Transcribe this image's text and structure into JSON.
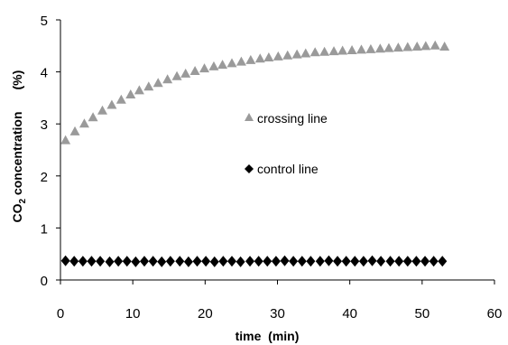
{
  "chart_data": {
    "type": "scatter",
    "xlabel": "time  (min)",
    "ylabel": "CO2 concentration    (%)",
    "ylabel_parts": {
      "main": "CO",
      "sub": "2",
      "rest": " concentration",
      "unit": "(%)"
    },
    "xlim": [
      0,
      60
    ],
    "ylim": [
      0,
      5
    ],
    "x_ticks": [
      "0",
      "10",
      "20",
      "30",
      "40",
      "50",
      "60"
    ],
    "y_ticks": [
      "0",
      "1",
      "2",
      "3",
      "4",
      "5"
    ],
    "grid": false,
    "legend_position": "center-right",
    "series": [
      {
        "name": "crossing line",
        "marker": "triangle",
        "color": "#9a9a9a",
        "x": [
          0.7,
          2.0,
          3.3,
          4.5,
          5.8,
          7.1,
          8.4,
          9.7,
          10.9,
          12.2,
          13.5,
          14.8,
          16.1,
          17.3,
          18.6,
          19.9,
          21.2,
          22.4,
          23.7,
          25.0,
          26.3,
          27.6,
          28.8,
          30.1,
          31.4,
          32.7,
          33.9,
          35.2,
          36.5,
          37.8,
          39.0,
          40.3,
          41.6,
          42.9,
          44.2,
          45.4,
          46.7,
          48.0,
          49.3,
          50.5,
          51.8,
          53.1
        ],
        "y": [
          2.68,
          2.85,
          3.0,
          3.12,
          3.25,
          3.36,
          3.46,
          3.56,
          3.64,
          3.71,
          3.78,
          3.85,
          3.91,
          3.96,
          4.01,
          4.06,
          4.1,
          4.13,
          4.16,
          4.19,
          4.22,
          4.25,
          4.27,
          4.29,
          4.31,
          4.33,
          4.35,
          4.37,
          4.38,
          4.39,
          4.4,
          4.41,
          4.42,
          4.43,
          4.44,
          4.45,
          4.46,
          4.47,
          4.48,
          4.49,
          4.5,
          4.48
        ]
      },
      {
        "name": "control line",
        "marker": "diamond",
        "color": "#000000",
        "x": [
          0.7,
          1.9,
          3.1,
          4.3,
          5.5,
          6.8,
          8.0,
          9.2,
          10.4,
          11.6,
          12.8,
          14.0,
          15.2,
          16.5,
          17.7,
          18.9,
          20.1,
          21.3,
          22.5,
          23.7,
          24.9,
          26.2,
          27.4,
          28.6,
          29.8,
          31.0,
          32.2,
          33.4,
          34.6,
          35.9,
          37.1,
          38.3,
          39.5,
          40.7,
          41.9,
          43.1,
          44.3,
          45.6,
          46.8,
          48.0,
          49.2,
          50.4,
          51.6,
          52.8
        ],
        "y": [
          0.37,
          0.36,
          0.36,
          0.36,
          0.36,
          0.35,
          0.36,
          0.36,
          0.35,
          0.36,
          0.36,
          0.35,
          0.36,
          0.36,
          0.35,
          0.36,
          0.36,
          0.35,
          0.36,
          0.36,
          0.35,
          0.36,
          0.36,
          0.36,
          0.36,
          0.37,
          0.36,
          0.36,
          0.36,
          0.36,
          0.37,
          0.36,
          0.36,
          0.36,
          0.36,
          0.37,
          0.36,
          0.36,
          0.36,
          0.36,
          0.36,
          0.36,
          0.36,
          0.36
        ]
      }
    ]
  }
}
